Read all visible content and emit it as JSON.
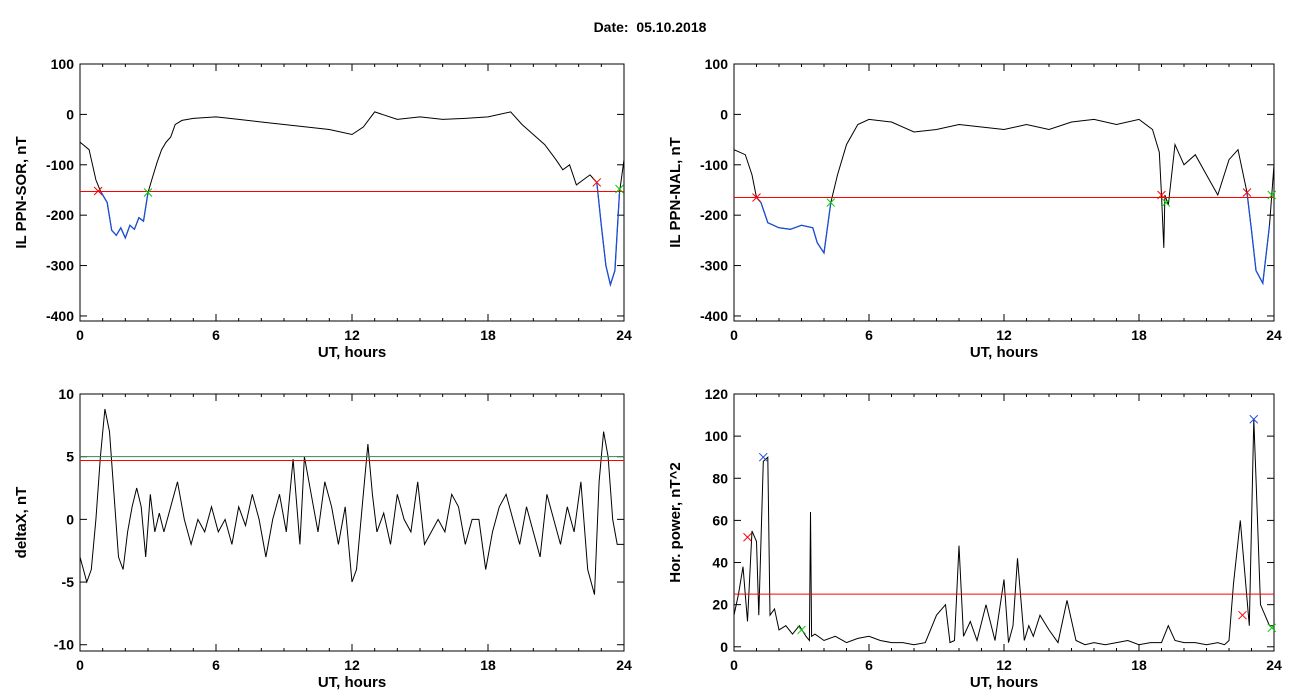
{
  "title": "Date:  05.10.2018",
  "chart_data": [
    {
      "id": "p1",
      "type": "line",
      "xlabel": "UT, hours",
      "ylabel": "IL PPN-SOR, nT",
      "xlim": [
        0,
        24
      ],
      "ylim": [
        -410,
        100
      ],
      "xticks": [
        0,
        6,
        12,
        18,
        24
      ],
      "yticks": [
        -400,
        -300,
        -200,
        -100,
        0,
        100
      ],
      "x": [
        0,
        0.4,
        0.7,
        0.9,
        1.2,
        1.4,
        1.6,
        1.8,
        2.0,
        2.2,
        2.4,
        2.6,
        2.8,
        3.0,
        3.2,
        3.4,
        3.6,
        3.8,
        4.0,
        4.2,
        4.5,
        5,
        6,
        7,
        8,
        9,
        10,
        11,
        12,
        12.5,
        13,
        14,
        15,
        16,
        17,
        18,
        19,
        19.5,
        20,
        20.5,
        21,
        21.3,
        21.6,
        21.9,
        22.2,
        22.5,
        22.8,
        23.0,
        23.2,
        23.4,
        23.6,
        23.8,
        24
      ],
      "values": [
        -55,
        -70,
        -130,
        -152,
        -175,
        -230,
        -240,
        -225,
        -245,
        -220,
        -228,
        -205,
        -212,
        -155,
        -125,
        -95,
        -70,
        -55,
        -45,
        -20,
        -12,
        -8,
        -5,
        -10,
        -15,
        -20,
        -25,
        -30,
        -40,
        -25,
        5,
        -10,
        -5,
        -10,
        -8,
        -5,
        5,
        -20,
        -40,
        -60,
        -90,
        -110,
        -100,
        -140,
        -130,
        -120,
        -135,
        -220,
        -300,
        -338,
        -310,
        -155,
        -90
      ],
      "threshold": {
        "value": -153,
        "color": "#ff0000"
      },
      "markers": [
        {
          "x": 0.8,
          "y": -152,
          "color": "#ff0000"
        },
        {
          "x": 3.0,
          "y": -155,
          "color": "#00cc00"
        },
        {
          "x": 22.8,
          "y": -135,
          "color": "#ff0000"
        },
        {
          "x": 23.8,
          "y": -148,
          "color": "#00cc00"
        }
      ],
      "highlight": {
        "color": "#1a4fd6",
        "ranges": [
          [
            0.8,
            3.0
          ],
          [
            22.8,
            23.8
          ]
        ]
      }
    },
    {
      "id": "p2",
      "type": "line",
      "xlabel": "UT, hours",
      "ylabel": "IL PPN-NAL, nT",
      "xlim": [
        0,
        24
      ],
      "ylim": [
        -410,
        100
      ],
      "xticks": [
        0,
        6,
        12,
        18,
        24
      ],
      "yticks": [
        -400,
        -300,
        -200,
        -100,
        0,
        100
      ],
      "x": [
        0,
        0.5,
        0.8,
        1.0,
        1.2,
        1.5,
        2.0,
        2.5,
        3.0,
        3.5,
        3.7,
        4.0,
        4.3,
        4.6,
        5.0,
        5.5,
        6,
        7,
        8,
        9,
        10,
        11,
        12,
        13,
        14,
        15,
        16,
        17,
        18,
        18.6,
        18.9,
        19.0,
        19.1,
        19.15,
        19.3,
        19.6,
        20,
        20.5,
        21,
        21.5,
        22,
        22.4,
        22.8,
        23.0,
        23.2,
        23.5,
        23.8,
        24
      ],
      "values": [
        -70,
        -80,
        -120,
        -165,
        -175,
        -215,
        -225,
        -228,
        -220,
        -225,
        -255,
        -275,
        -175,
        -120,
        -60,
        -20,
        -10,
        -15,
        -35,
        -30,
        -20,
        -25,
        -30,
        -20,
        -30,
        -15,
        -10,
        -20,
        -10,
        -30,
        -75,
        -160,
        -265,
        -160,
        -180,
        -60,
        -100,
        -80,
        -120,
        -160,
        -90,
        -70,
        -155,
        -230,
        -310,
        -335,
        -220,
        -100
      ],
      "threshold": {
        "value": -165,
        "color": "#ff0000"
      },
      "markers": [
        {
          "x": 1.0,
          "y": -165,
          "color": "#ff0000"
        },
        {
          "x": 4.3,
          "y": -175,
          "color": "#00cc00"
        },
        {
          "x": 19.0,
          "y": -160,
          "color": "#ff0000"
        },
        {
          "x": 19.2,
          "y": -175,
          "color": "#00cc00"
        },
        {
          "x": 22.8,
          "y": -155,
          "color": "#ff0000"
        },
        {
          "x": 23.9,
          "y": -160,
          "color": "#00cc00"
        }
      ],
      "highlight": {
        "color": "#1a4fd6",
        "ranges": [
          [
            1.0,
            4.3
          ],
          [
            22.8,
            23.9
          ]
        ]
      }
    },
    {
      "id": "p3",
      "type": "line",
      "xlabel": "UT, hours",
      "ylabel": "deltaX, nT",
      "xlim": [
        0,
        24
      ],
      "ylim": [
        -10.5,
        10
      ],
      "xticks": [
        0,
        6,
        12,
        18,
        24
      ],
      "yticks": [
        -10,
        -5,
        0,
        5,
        10
      ],
      "x": [
        0,
        0.3,
        0.5,
        0.7,
        0.9,
        1.1,
        1.3,
        1.5,
        1.7,
        1.9,
        2.1,
        2.3,
        2.5,
        2.7,
        2.9,
        3.1,
        3.3,
        3.5,
        3.7,
        4.0,
        4.3,
        4.6,
        4.9,
        5.2,
        5.5,
        5.8,
        6.1,
        6.4,
        6.7,
        7.0,
        7.3,
        7.6,
        7.9,
        8.2,
        8.5,
        8.8,
        9.1,
        9.4,
        9.7,
        9.9,
        10.2,
        10.5,
        10.8,
        11.1,
        11.4,
        11.7,
        12.0,
        12.2,
        12.5,
        12.7,
        12.9,
        13.1,
        13.4,
        13.7,
        14.0,
        14.3,
        14.6,
        14.9,
        15.2,
        15.5,
        15.8,
        16.1,
        16.4,
        16.7,
        17.0,
        17.3,
        17.6,
        17.9,
        18.2,
        18.5,
        18.8,
        19.1,
        19.4,
        19.7,
        20.0,
        20.3,
        20.6,
        20.9,
        21.2,
        21.5,
        21.8,
        22.1,
        22.4,
        22.7,
        22.9,
        23.1,
        23.3,
        23.5,
        23.7,
        24
      ],
      "values": [
        -3,
        -5,
        -4,
        0,
        5,
        8.8,
        7,
        2,
        -3,
        -4,
        -1,
        1,
        2.5,
        1,
        -3,
        2,
        -1,
        0.5,
        -1,
        1,
        3,
        0,
        -2,
        0,
        -1,
        1,
        -1,
        0,
        -2,
        1,
        -0.5,
        2,
        0,
        -3,
        0,
        2,
        -1,
        4.8,
        -2,
        5,
        2,
        -1,
        3,
        1,
        -2,
        1,
        -5,
        -4,
        2,
        6,
        2,
        -1,
        0.5,
        -2,
        2,
        0,
        -1,
        3,
        -2,
        -1,
        0,
        -1,
        2,
        1,
        -2,
        0,
        0,
        -4,
        -1,
        1,
        2,
        0,
        -2,
        1,
        -1,
        -3,
        2,
        0,
        -2,
        1,
        -1,
        3,
        -4,
        -6,
        3,
        7,
        5,
        0,
        -2,
        -2
      ],
      "hlines": [
        {
          "value": 5.0,
          "color": "#2e8b57"
        },
        {
          "value": 4.7,
          "color": "#ff0000"
        }
      ]
    },
    {
      "id": "p4",
      "type": "line",
      "xlabel": "UT, hours",
      "ylabel": "Hor. power, nT^2",
      "xlim": [
        0,
        24
      ],
      "ylim": [
        -2,
        120
      ],
      "xticks": [
        0,
        6,
        12,
        18,
        24
      ],
      "yticks": [
        0,
        20,
        40,
        60,
        80,
        100,
        120
      ],
      "x": [
        0,
        0.2,
        0.4,
        0.6,
        0.8,
        1.0,
        1.1,
        1.3,
        1.5,
        1.6,
        1.8,
        2.0,
        2.3,
        2.6,
        2.9,
        3.2,
        3.35,
        3.4,
        3.45,
        3.6,
        4.0,
        4.5,
        5.0,
        5.5,
        6.0,
        6.5,
        7.0,
        7.5,
        8.0,
        8.5,
        9.0,
        9.4,
        9.6,
        9.8,
        10.0,
        10.2,
        10.5,
        10.8,
        11.2,
        11.6,
        12.0,
        12.2,
        12.4,
        12.6,
        12.9,
        13.1,
        13.3,
        13.6,
        14.0,
        14.4,
        14.8,
        15.2,
        15.6,
        16.0,
        16.5,
        17.0,
        17.5,
        18.0,
        18.5,
        19.0,
        19.3,
        19.6,
        20.0,
        20.5,
        21.0,
        21.5,
        21.8,
        22.0,
        22.2,
        22.5,
        22.7,
        22.9,
        23.1,
        23.2,
        23.4,
        23.6,
        23.8,
        24
      ],
      "values": [
        15,
        25,
        38,
        12,
        55,
        50,
        15,
        88,
        90,
        15,
        18,
        8,
        10,
        6,
        10,
        5,
        3,
        64,
        5,
        6,
        3,
        5,
        2,
        4,
        5,
        3,
        2,
        2,
        1,
        2,
        15,
        20,
        2,
        3,
        48,
        5,
        12,
        3,
        20,
        3,
        32,
        2,
        10,
        42,
        3,
        10,
        5,
        15,
        8,
        2,
        22,
        3,
        1,
        2,
        1,
        2,
        3,
        1,
        2,
        2,
        10,
        3,
        2,
        2,
        1,
        2,
        1,
        3,
        30,
        60,
        35,
        10,
        108,
        80,
        20,
        15,
        10,
        10
      ],
      "threshold": {
        "value": 25,
        "color": "#ff0000"
      },
      "markers": [
        {
          "x": 0.6,
          "y": 52,
          "color": "#ff0000"
        },
        {
          "x": 1.3,
          "y": 90,
          "color": "#1a4fd6"
        },
        {
          "x": 3.0,
          "y": 8,
          "color": "#00cc00"
        },
        {
          "x": 22.6,
          "y": 15,
          "color": "#ff0000"
        },
        {
          "x": 23.1,
          "y": 108,
          "color": "#1a4fd6"
        },
        {
          "x": 23.9,
          "y": 9,
          "color": "#00cc00"
        }
      ]
    }
  ]
}
